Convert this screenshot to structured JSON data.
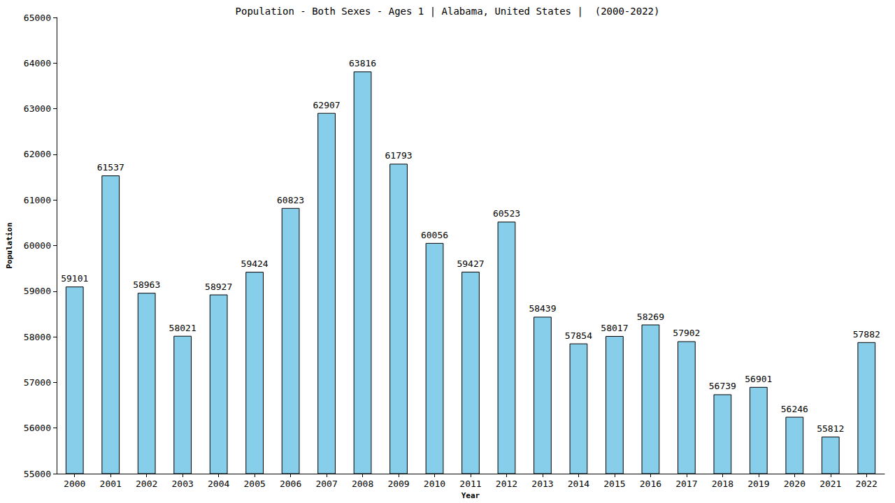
{
  "chart_data": {
    "type": "bar",
    "title": "Population - Both Sexes - Ages 1 | Alabama, United States |  (2000-2022)",
    "x_label": "Year",
    "y_label": "Population",
    "categories": [
      "2000",
      "2001",
      "2002",
      "2003",
      "2004",
      "2005",
      "2006",
      "2007",
      "2008",
      "2009",
      "2010",
      "2011",
      "2012",
      "2013",
      "2014",
      "2015",
      "2016",
      "2017",
      "2018",
      "2019",
      "2020",
      "2021",
      "2022"
    ],
    "values": [
      59101,
      61537,
      58963,
      58021,
      58927,
      59424,
      60823,
      62907,
      63816,
      61793,
      60056,
      59427,
      60523,
      58439,
      57854,
      58017,
      58269,
      57902,
      56739,
      56901,
      56246,
      55812,
      57882
    ],
    "color": "#87ceeb",
    "ylim": [
      55000,
      65000
    ],
    "yticks": [
      55000,
      56000,
      57000,
      58000,
      59000,
      60000,
      61000,
      62000,
      63000,
      64000,
      65000
    ],
    "grid": false,
    "data_labels": true
  }
}
